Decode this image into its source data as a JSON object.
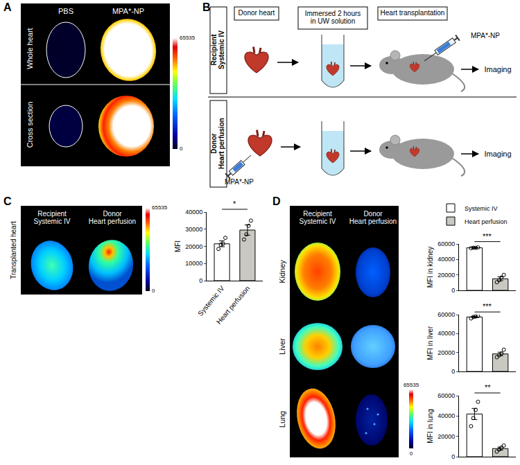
{
  "figure": {
    "panel_A": {
      "label": "A",
      "columns": [
        "PBS",
        "MPA*-NP"
      ],
      "rows": [
        "Whole heart",
        "Cross section"
      ],
      "colorbar": {
        "range": [
          0,
          65535
        ],
        "ticks": [
          65535,
          0
        ]
      }
    },
    "panel_B": {
      "label": "B",
      "rows": [
        [
          "Recipient",
          "Systemic IV"
        ],
        [
          "Donor",
          "Heart perfusion"
        ]
      ],
      "steps": [
        [
          "Donor heart"
        ],
        [
          "Immersed 2 hours",
          "in UW solution"
        ],
        [
          "Heart transplantation"
        ]
      ],
      "injection": "MPA*-NP",
      "readout": "Imaging"
    },
    "panel_C": {
      "label": "C",
      "columns": [
        [
          "Recipient",
          "Systemic IV"
        ],
        [
          "Donor",
          "Heart perfusion"
        ]
      ],
      "rows": [
        "Transplanted heart"
      ],
      "colorbar": {
        "range": [
          0,
          65535
        ],
        "ticks": [
          65535,
          0
        ]
      }
    },
    "panel_D": {
      "label": "D",
      "columns": [
        [
          "Recipient",
          "Systemic IV"
        ],
        [
          "Donor",
          "Heart perfusion"
        ]
      ],
      "rows": [
        "Kidney",
        "Liver",
        "Lung"
      ],
      "colorbar": {
        "range": [
          0,
          65535
        ],
        "ticks": [
          65535,
          0
        ]
      }
    }
  },
  "chart_data": [
    {
      "type": "bar",
      "categories": [
        "Systemic IV",
        "Heart perfusion"
      ],
      "values": [
        21500,
        29500
      ],
      "errors": [
        1700,
        3000
      ],
      "points": [
        [
          18500,
          21000,
          21500,
          25000
        ],
        [
          24000,
          27000,
          32000,
          35000
        ]
      ],
      "colors": [
        "#ffffff",
        "#c9c9c1"
      ],
      "y_label": "MFI",
      "ylim": [
        0,
        40000
      ],
      "yticks": [
        0,
        10000,
        20000,
        30000,
        40000
      ],
      "significance": "*",
      "grid": false,
      "tick_labels": true
    },
    {
      "type": "bar",
      "categories": [
        "Systemic IV",
        "Heart perfusion"
      ],
      "values": [
        55000,
        15000
      ],
      "errors": [
        800,
        2500
      ],
      "points": [
        [
          54500,
          55000,
          55000,
          55500
        ],
        [
          10500,
          13000,
          16500,
          20000
        ]
      ],
      "colors": [
        "#ffffff",
        "#c9c9c1"
      ],
      "y_label": "MFI in kidney",
      "ylim": [
        0,
        60000
      ],
      "yticks": [
        0,
        20000,
        40000,
        60000
      ],
      "significance": "***",
      "grid": false,
      "tick_labels": "y",
      "legend": "top left"
    },
    {
      "type": "bar",
      "categories": [
        "Systemic IV",
        "Heart perfusion"
      ],
      "values": [
        57500,
        18500
      ],
      "errors": [
        700,
        1800
      ],
      "points": [
        [
          56000,
          57500,
          58000,
          58500
        ],
        [
          15000,
          17000,
          19000,
          23000
        ]
      ],
      "colors": [
        "#ffffff",
        "#c9c9c1"
      ],
      "y_label": "MFI in liver",
      "ylim": [
        0,
        60000
      ],
      "yticks": [
        0,
        20000,
        40000,
        60000
      ],
      "significance": "***",
      "grid": false,
      "tick_labels": "y"
    },
    {
      "type": "bar",
      "categories": [
        "Systemic IV",
        "Heart perfusion"
      ],
      "values": [
        42000,
        8000
      ],
      "errors": [
        5500,
        1500
      ],
      "points": [
        [
          30000,
          38000,
          46000,
          54000
        ],
        [
          5000,
          7000,
          9000,
          11000
        ]
      ],
      "colors": [
        "#ffffff",
        "#c9c9c1"
      ],
      "y_label": "MFI in lung",
      "ylim": [
        0,
        60000
      ],
      "yticks": [
        0,
        20000,
        40000,
        60000
      ],
      "significance": "**",
      "grid": false,
      "tick_labels": "y"
    }
  ]
}
